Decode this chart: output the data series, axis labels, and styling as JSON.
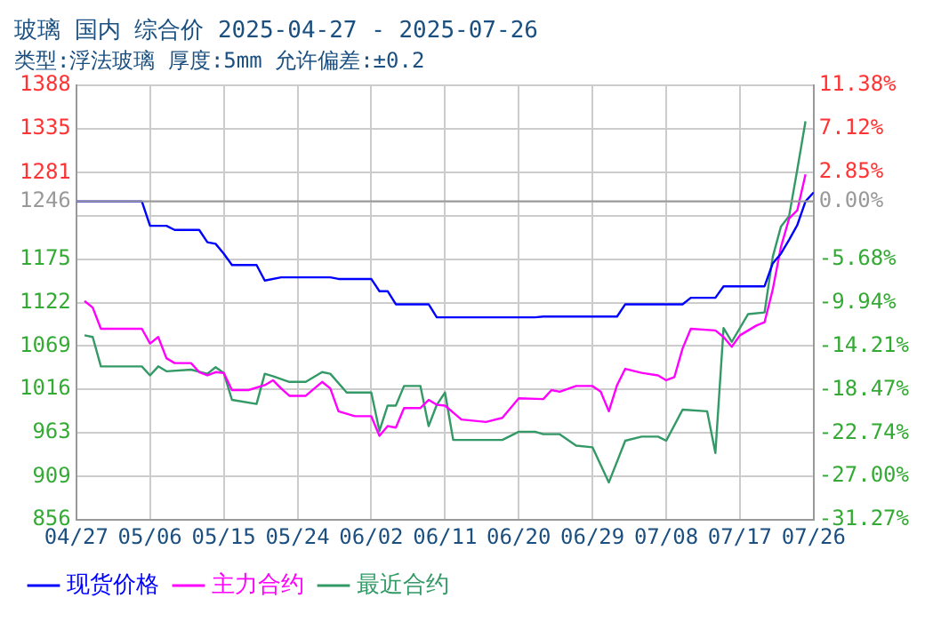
{
  "chart_data": {
    "type": "line",
    "title": "玻璃 国内 综合价 2025-04-27 - 2025-07-26",
    "subtitle": "类型:浮法玻璃 厚度:5mm 允许偏差:±0.2",
    "xlim": [
      "2025-04-27",
      "2025-07-26"
    ],
    "xticks": [
      {
        "value": "2025-04-27",
        "label": "04/27"
      },
      {
        "value": "2025-05-06",
        "label": "05/06"
      },
      {
        "value": "2025-05-15",
        "label": "05/15"
      },
      {
        "value": "2025-05-24",
        "label": "05/24"
      },
      {
        "value": "2025-06-02",
        "label": "06/02"
      },
      {
        "value": "2025-06-11",
        "label": "06/11"
      },
      {
        "value": "2025-06-20",
        "label": "06/20"
      },
      {
        "value": "2025-06-29",
        "label": "06/29"
      },
      {
        "value": "2025-07-08",
        "label": "07/08"
      },
      {
        "value": "2025-07-17",
        "label": "07/17"
      },
      {
        "value": "2025-07-26",
        "label": "07/26"
      }
    ],
    "ylim": [
      856,
      1388
    ],
    "yticks": [
      856,
      909,
      963,
      1016,
      1069,
      1122,
      1175,
      {
        "value": 1228,
        "label": null
      },
      1246,
      1281,
      1335,
      1388
    ],
    "y2lim": [
      -31.27,
      11.38
    ],
    "y2ticks": [
      {
        "value": -31.27,
        "label": "-31.27%"
      },
      {
        "value": -27.0,
        "label": "-27.00%"
      },
      {
        "value": -22.74,
        "label": "-22.74%"
      },
      {
        "value": -18.47,
        "label": "-18.47%"
      },
      {
        "value": -14.21,
        "label": "-14.21%"
      },
      {
        "value": -9.94,
        "label": "-9.94%"
      },
      {
        "value": -5.68,
        "label": "-5.68%"
      },
      {
        "value": -1.41,
        "label": null
      },
      {
        "value": 0,
        "label": "0.00%"
      },
      {
        "value": 2.85,
        "label": "2.85%"
      },
      {
        "value": 7.12,
        "label": "7.12%"
      },
      {
        "value": 11.38,
        "label": "11.38%"
      }
    ],
    "ref_lines": [
      {
        "axis": "y",
        "value": 1246,
        "color": "#999999"
      }
    ],
    "grid": true,
    "legend": "bottom",
    "marker": "none",
    "line_style": "solid",
    "series": [
      {
        "name": "现货价格",
        "color": "#0000ff",
        "x": [
          "2025-04-27",
          "2025-05-05",
          "2025-05-06",
          "2025-05-08",
          "2025-05-09",
          "2025-05-12",
          "2025-05-13",
          "2025-05-14",
          "2025-05-15",
          "2025-05-16",
          "2025-05-19",
          "2025-05-20",
          "2025-05-22",
          "2025-05-28",
          "2025-05-29",
          "2025-06-02",
          "2025-06-03",
          "2025-06-04",
          "2025-06-05",
          "2025-06-09",
          "2025-06-10",
          "2025-06-22",
          "2025-06-23",
          "2025-07-02",
          "2025-07-03",
          "2025-07-10",
          "2025-07-11",
          "2025-07-14",
          "2025-07-15",
          "2025-07-20",
          "2025-07-21",
          "2025-07-22",
          "2025-07-23",
          "2025-07-24",
          "2025-07-25",
          "2025-07-26"
        ],
        "values": [
          1246,
          1246,
          1216,
          1216,
          1211,
          1211,
          1196,
          1194,
          1182,
          1168,
          1168,
          1149,
          1153,
          1153,
          1151,
          1151,
          1136,
          1136,
          1120,
          1120,
          1104,
          1104,
          1105,
          1105,
          1120,
          1120,
          1128,
          1128,
          1142,
          1142,
          1170,
          1182,
          1199,
          1217,
          1246,
          1257
        ]
      },
      {
        "name": "主力合约",
        "color": "#ff00ff",
        "x": [
          "2025-04-28",
          "2025-04-29",
          "2025-04-30",
          "2025-05-05",
          "2025-05-06",
          "2025-05-07",
          "2025-05-08",
          "2025-05-09",
          "2025-05-11",
          "2025-05-12",
          "2025-05-13",
          "2025-05-14",
          "2025-05-15",
          "2025-05-16",
          "2025-05-18",
          "2025-05-20",
          "2025-05-21",
          "2025-05-22",
          "2025-05-23",
          "2025-05-25",
          "2025-05-27",
          "2025-05-28",
          "2025-05-29",
          "2025-05-31",
          "2025-06-02",
          "2025-06-03",
          "2025-06-04",
          "2025-06-05",
          "2025-06-06",
          "2025-06-08",
          "2025-06-09",
          "2025-06-10",
          "2025-06-11",
          "2025-06-13",
          "2025-06-16",
          "2025-06-18",
          "2025-06-20",
          "2025-06-23",
          "2025-06-24",
          "2025-06-25",
          "2025-06-27",
          "2025-06-29",
          "2025-06-30",
          "2025-07-01",
          "2025-07-02",
          "2025-07-03",
          "2025-07-05",
          "2025-07-07",
          "2025-07-08",
          "2025-07-09",
          "2025-07-10",
          "2025-07-11",
          "2025-07-14",
          "2025-07-15",
          "2025-07-16",
          "2025-07-17",
          "2025-07-19",
          "2025-07-20",
          "2025-07-21",
          "2025-07-22",
          "2025-07-23",
          "2025-07-24",
          "2025-07-25"
        ],
        "values": [
          1124,
          1116,
          1090,
          1090,
          1072,
          1080,
          1054,
          1048,
          1048,
          1037,
          1033,
          1037,
          1036,
          1015,
          1015,
          1021,
          1027,
          1017,
          1008,
          1008,
          1025,
          1017,
          989,
          983,
          983,
          959,
          971,
          969,
          993,
          993,
          1003,
          997,
          996,
          979,
          976,
          981,
          1005,
          1004,
          1015,
          1013,
          1020,
          1020,
          1013,
          989,
          1021,
          1041,
          1036,
          1033,
          1027,
          1031,
          1066,
          1090,
          1088,
          1080,
          1068,
          1082,
          1094,
          1098,
          1138,
          1190,
          1225,
          1235,
          1279
        ]
      },
      {
        "name": "最近合约",
        "color": "#339966",
        "x": [
          "2025-04-28",
          "2025-04-29",
          "2025-04-30",
          "2025-05-05",
          "2025-05-06",
          "2025-05-07",
          "2025-05-08",
          "2025-05-11",
          "2025-05-13",
          "2025-05-14",
          "2025-05-15",
          "2025-05-16",
          "2025-05-19",
          "2025-05-20",
          "2025-05-21",
          "2025-05-23",
          "2025-05-25",
          "2025-05-27",
          "2025-05-28",
          "2025-05-30",
          "2025-06-02",
          "2025-06-03",
          "2025-06-04",
          "2025-06-05",
          "2025-06-06",
          "2025-06-08",
          "2025-06-09",
          "2025-06-10",
          "2025-06-11",
          "2025-06-12",
          "2025-06-18",
          "2025-06-20",
          "2025-06-22",
          "2025-06-23",
          "2025-06-25",
          "2025-06-27",
          "2025-06-29",
          "2025-07-01",
          "2025-07-03",
          "2025-07-05",
          "2025-07-07",
          "2025-07-08",
          "2025-07-10",
          "2025-07-13",
          "2025-07-14",
          "2025-07-15",
          "2025-07-16",
          "2025-07-18",
          "2025-07-20",
          "2025-07-21",
          "2025-07-22",
          "2025-07-23",
          "2025-07-24",
          "2025-07-25"
        ],
        "values": [
          1082,
          1080,
          1044,
          1044,
          1033,
          1044,
          1038,
          1040,
          1035,
          1043,
          1036,
          1003,
          998,
          1035,
          1032,
          1025,
          1025,
          1037,
          1035,
          1012,
          1012,
          965,
          996,
          996,
          1020,
          1020,
          971,
          997,
          1012,
          954,
          954,
          964,
          964,
          961,
          961,
          947,
          945,
          902,
          953,
          958,
          958,
          953,
          991,
          989,
          938,
          1091,
          1074,
          1108,
          1110,
          1178,
          1215,
          1228,
          1285,
          1344
        ]
      }
    ]
  }
}
